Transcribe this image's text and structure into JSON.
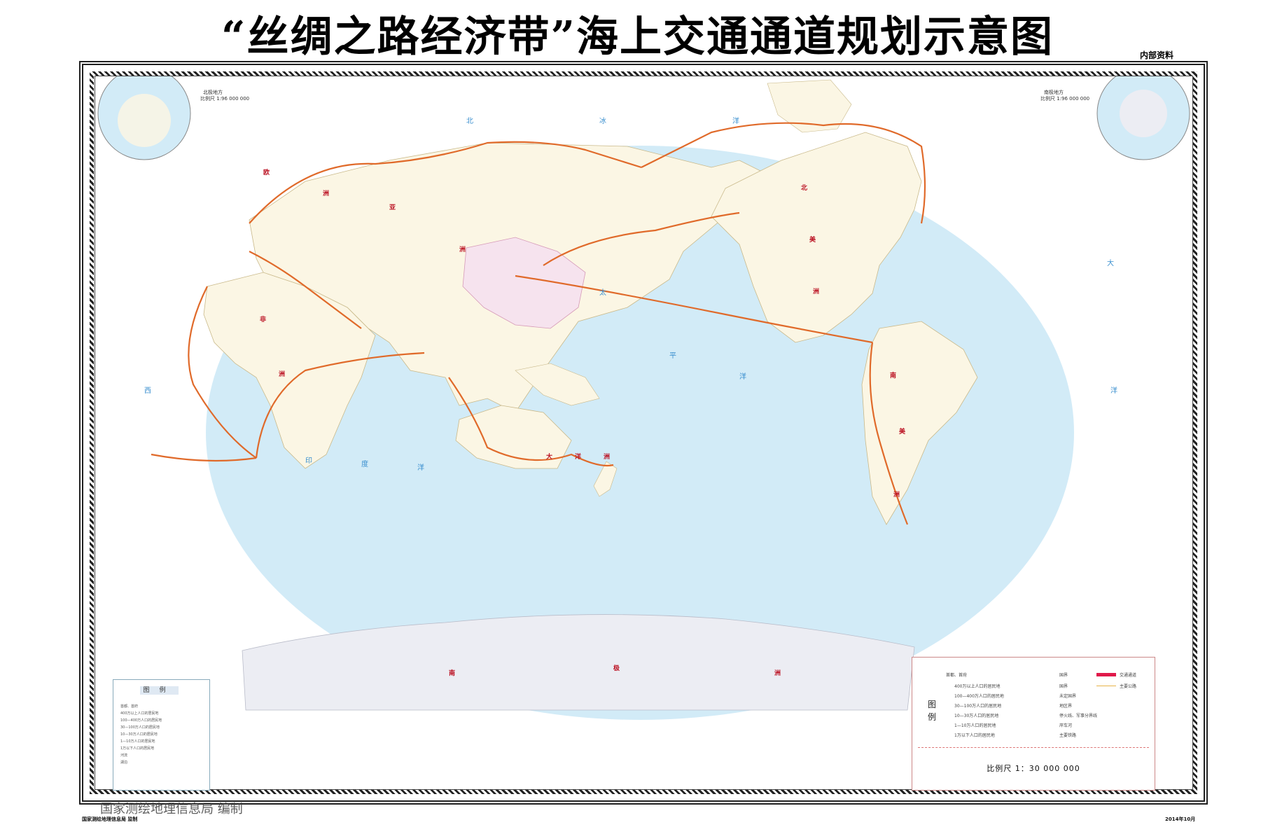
{
  "title": "“丝绸之路经济带”海上交通通道规划示意图",
  "classification": "内部资料",
  "insets": {
    "north": {
      "title": "北极地方",
      "scale": "比例尺 1:96 000 000"
    },
    "south": {
      "title": "南极地方",
      "scale": "比例尺 1:96 000 000"
    }
  },
  "legend_left": {
    "title": "图例",
    "items": [
      "首都、首府",
      "400万以上人口的居民地",
      "100—400万人口的居民地",
      "30—100万人口的居民地",
      "10—30万人口的居民地",
      "1—10万人口的居民地",
      "1万以下人口的居民地",
      "河流",
      "湖泊"
    ]
  },
  "legend_right": {
    "title": "图例",
    "col1": [
      "首都、首府",
      "400万以上人口的居民地",
      "100—400万人口的居民地",
      "30—100万人口的居民地",
      "10—30万人口的居民地",
      "1—10万人口的居民地",
      "1万以下人口的居民地"
    ],
    "col2": [
      "国界",
      "国界",
      "未定国界",
      "地区界",
      "停火线、军事分界线",
      "岸车河",
      "主要铁路"
    ],
    "col3": [
      "交通通道",
      "主要公路"
    ],
    "scale": "比例尺 1：30 000 000"
  },
  "continents": [
    "亚",
    "洲",
    "欧",
    "洲",
    "非",
    "洲",
    "大",
    "洋",
    "洲",
    "北",
    "美",
    "洲",
    "南",
    "美",
    "洲",
    "南",
    "极",
    "洲"
  ],
  "oceans": [
    "太",
    "平",
    "洋",
    "大",
    "西",
    "洋",
    "印",
    "度",
    "洋",
    "北",
    "冰",
    "洋"
  ],
  "watermark": "国家测绘地理信息局 编制",
  "footer": {
    "left": "国家测绘地理信息局 监制",
    "right": "2014年10月"
  },
  "colors": {
    "ocean": "#d2ebf7",
    "land": "#fbf6e4",
    "route": "#e06a2a",
    "frame": "#222222",
    "antarctica": "#ecedf3"
  }
}
